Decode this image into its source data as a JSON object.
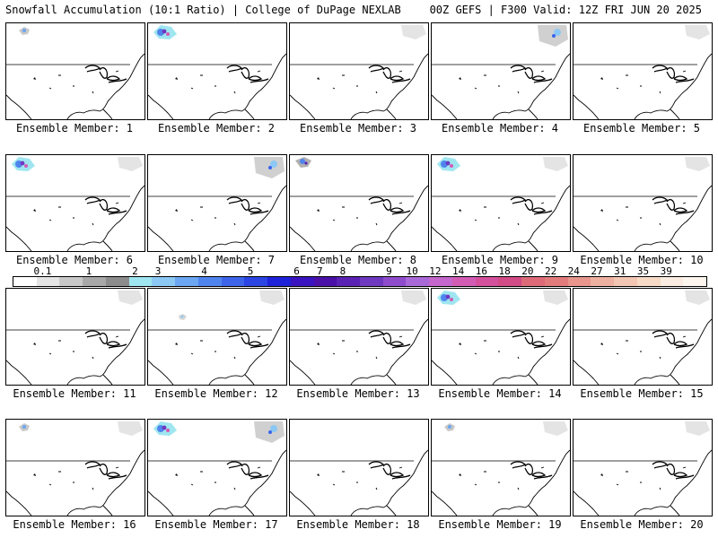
{
  "header": {
    "title_left": "Snowfall Accumulation (10:1 Ratio) | College of DuPage NEXLAB",
    "title_right": "00Z GEFS | F300 Valid: 12Z FRI JUN 20 2025"
  },
  "panels": [
    {
      "label": "Ensemble Member: 1",
      "snow": [
        [
          "nw",
          "light"
        ]
      ]
    },
    {
      "label": "Ensemble Member: 2",
      "snow": [
        [
          "nw",
          "heavy"
        ]
      ]
    },
    {
      "label": "Ensemble Member: 3",
      "snow": [
        [
          "ne",
          "light"
        ]
      ]
    },
    {
      "label": "Ensemble Member: 4",
      "snow": [
        [
          "ne",
          "medium"
        ]
      ]
    },
    {
      "label": "Ensemble Member: 5",
      "snow": [
        [
          "ne",
          "light"
        ]
      ]
    },
    {
      "label": "Ensemble Member: 6",
      "snow": [
        [
          "nw",
          "heavy"
        ],
        [
          "ne",
          "light"
        ]
      ]
    },
    {
      "label": "Ensemble Member: 7",
      "snow": [
        [
          "ne",
          "medium"
        ]
      ]
    },
    {
      "label": "Ensemble Member: 8",
      "snow": [
        [
          "nw",
          "medium"
        ]
      ]
    },
    {
      "label": "Ensemble Member: 9",
      "snow": [
        [
          "nw",
          "heavy"
        ],
        [
          "ne",
          "light"
        ]
      ]
    },
    {
      "label": "Ensemble Member: 10",
      "snow": [
        [
          "ne",
          "light"
        ]
      ]
    },
    {
      "label": "Ensemble Member: 11",
      "snow": [
        [
          "ne",
          "light"
        ]
      ]
    },
    {
      "label": "Ensemble Member: 12",
      "snow": [
        [
          "ne",
          "light"
        ],
        [
          "mid",
          "light"
        ]
      ]
    },
    {
      "label": "Ensemble Member: 13",
      "snow": [
        [
          "ne",
          "light"
        ]
      ]
    },
    {
      "label": "Ensemble Member: 14",
      "snow": [
        [
          "nw",
          "heavy"
        ],
        [
          "ne",
          "light"
        ]
      ]
    },
    {
      "label": "Ensemble Member: 15",
      "snow": [
        [
          "ne",
          "light"
        ]
      ]
    },
    {
      "label": "Ensemble Member: 16",
      "snow": [
        [
          "nw",
          "light"
        ],
        [
          "ne",
          "light"
        ]
      ]
    },
    {
      "label": "Ensemble Member: 17",
      "snow": [
        [
          "nw",
          "heavy"
        ],
        [
          "ne",
          "medium"
        ]
      ]
    },
    {
      "label": "Ensemble Member: 18",
      "snow": []
    },
    {
      "label": "Ensemble Member: 19",
      "snow": [
        [
          "nw",
          "light"
        ],
        [
          "ne",
          "light"
        ]
      ]
    },
    {
      "label": "Ensemble Member: 20",
      "snow": [
        [
          "ne",
          "light"
        ]
      ]
    }
  ],
  "colorbar": {
    "ticks": [
      "0.1",
      "1",
      "2",
      "3",
      "4",
      "5",
      "6",
      "7",
      "8",
      "9",
      "10",
      "12",
      "14",
      "16",
      "18",
      "20",
      "22",
      "24",
      "27",
      "31",
      "35",
      "39"
    ],
    "colors": [
      "#ffffff",
      "#e4e4e4",
      "#c8c8c8",
      "#a8a8a8",
      "#8c8c8c",
      "#9fe6f0",
      "#8cc8f4",
      "#6aa6f2",
      "#4f84ee",
      "#3c64ea",
      "#2b44e4",
      "#1e22d8",
      "#3a14c0",
      "#4a10a8",
      "#5a22b4",
      "#6e38c0",
      "#8e4ccc",
      "#a868d8",
      "#c466cc",
      "#d25cb4",
      "#d4509c",
      "#d24a86",
      "#dc6a78",
      "#e27c7c",
      "#e8958e",
      "#eeb0a0",
      "#f2c6b2",
      "#f6dac6",
      "#faece0",
      "#fdf6ee"
    ]
  }
}
